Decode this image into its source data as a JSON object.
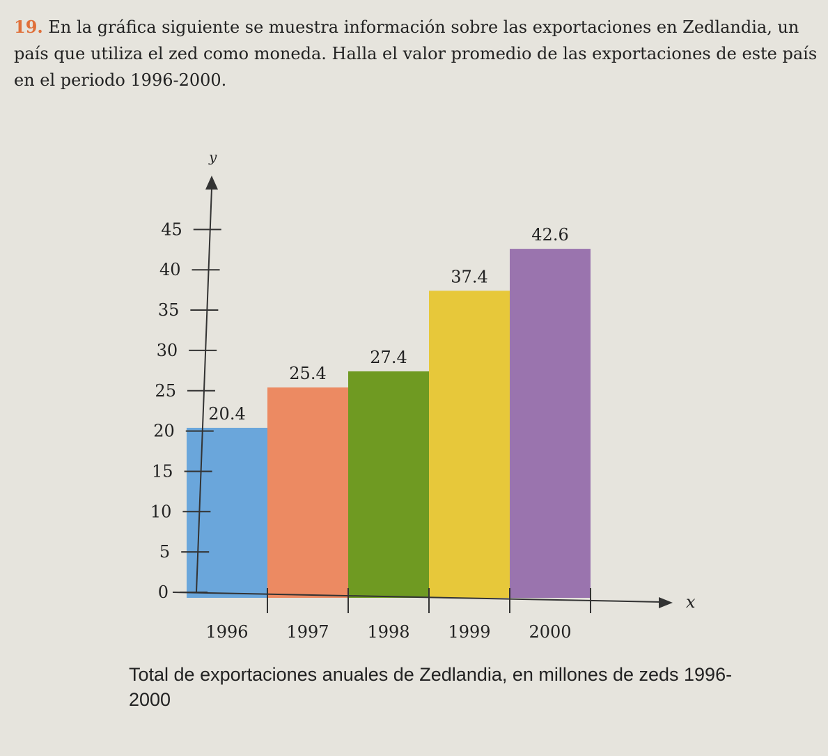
{
  "problem": {
    "number": "19.",
    "text": "En la gráfica siguiente se muestra información sobre las exportaciones en Zedlandia, un país que utiliza el zed como moneda. Halla el valor promedio de las exportaciones de este país en el periodo 1996-2000."
  },
  "chart_data": {
    "type": "bar",
    "title": "Total de exportaciones anuales de Zedlandia, en millones de zeds 1996-2000",
    "xlabel": "x",
    "ylabel": "y",
    "categories": [
      "1996",
      "1997",
      "1998",
      "1999",
      "2000"
    ],
    "values": [
      20.4,
      25.4,
      27.4,
      37.4,
      42.6
    ],
    "data_labels": [
      "20.4",
      "25.4",
      "27.4",
      "37.4",
      "42.6"
    ],
    "yticks": [
      0,
      5,
      10,
      15,
      20,
      25,
      30,
      35,
      40,
      45
    ],
    "ylim": [
      0,
      48
    ],
    "colors": [
      "#6aa6db",
      "#ec8a62",
      "#6f9a22",
      "#e7c83a",
      "#9a74ae"
    ],
    "grid": false,
    "legend": "none"
  }
}
